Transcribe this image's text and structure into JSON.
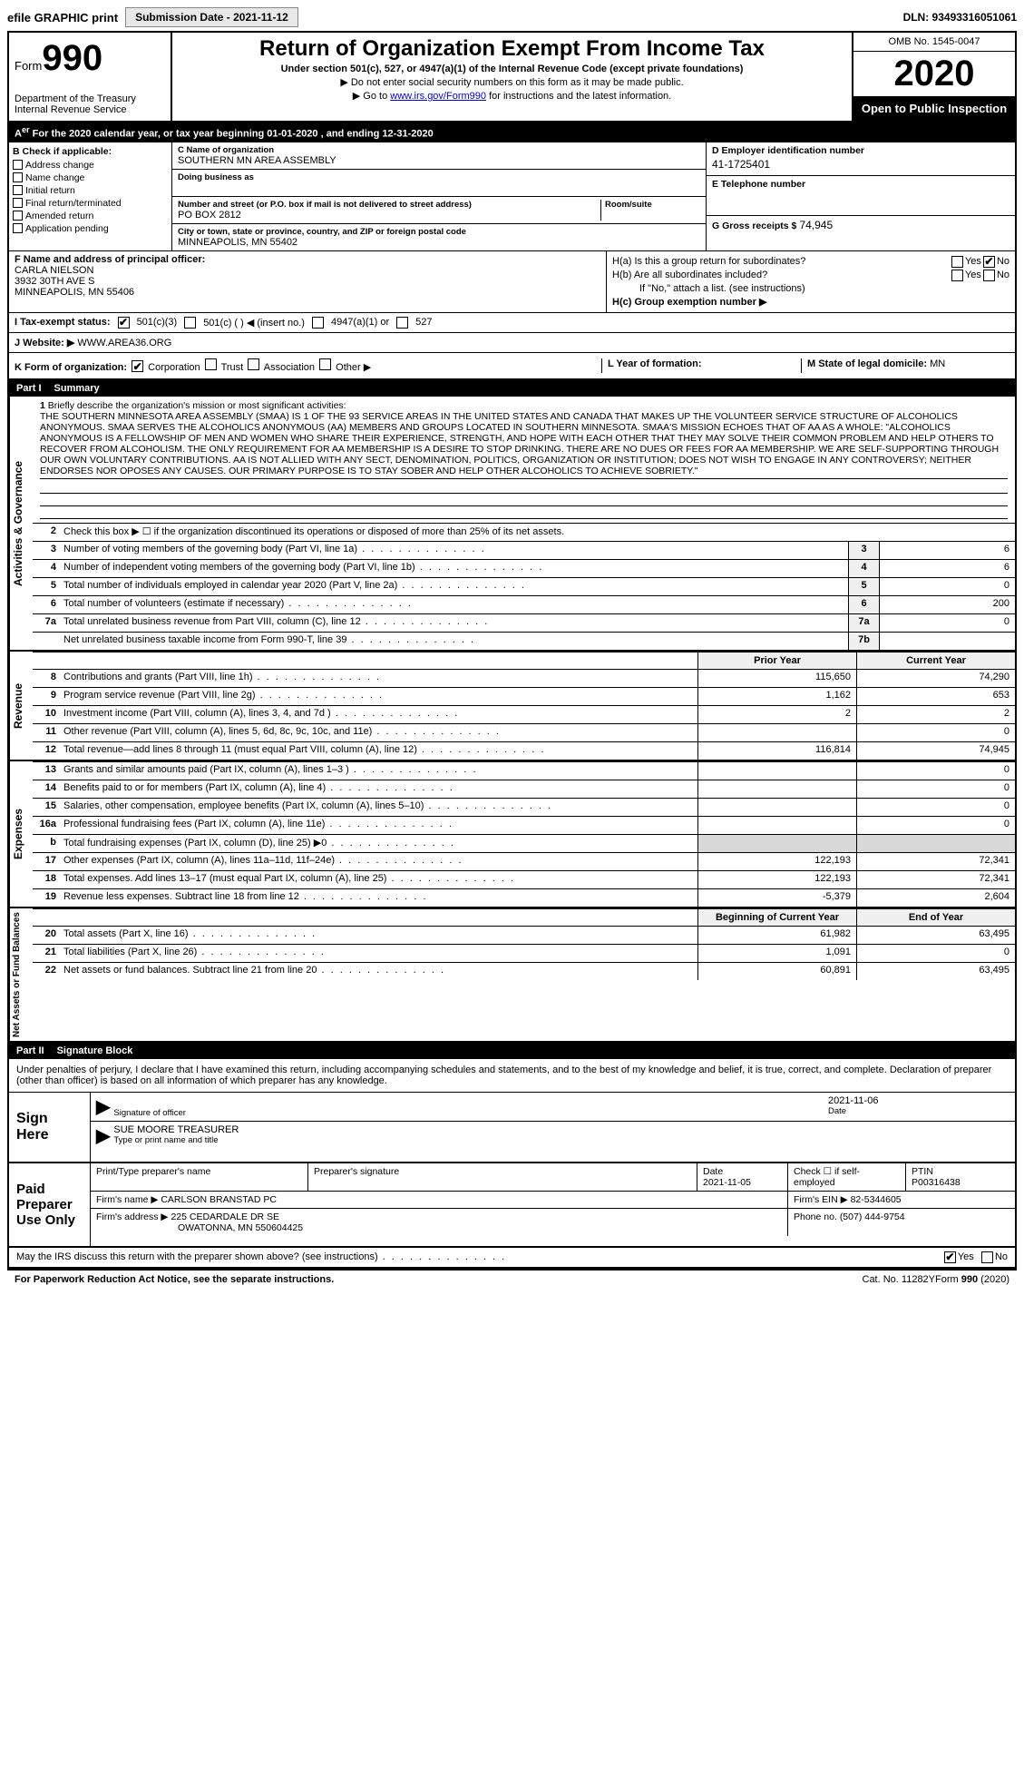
{
  "top": {
    "efile": "efile GRAPHIC print",
    "submission_label": "Submission Date - 2021-11-12",
    "dln": "DLN: 93493316051061"
  },
  "header": {
    "form_prefix": "Form",
    "form_num": "990",
    "dept": "Department of the Treasury\nInternal Revenue Service",
    "title": "Return of Organization Exempt From Income Tax",
    "subtitle": "Under section 501(c), 527, or 4947(a)(1) of the Internal Revenue Code (except private foundations)",
    "note1": "▶ Do not enter social security numbers on this form as it may be made public.",
    "note2": "▶ Go to www.irs.gov/Form990 for instructions and the latest information.",
    "link": "www.irs.gov/Form990",
    "omb": "OMB No. 1545-0047",
    "year": "2020",
    "open": "Open to Public Inspection"
  },
  "row_a": "For the 2020 calendar year, or tax year beginning 01-01-2020   , and ending 12-31-2020",
  "col_b": {
    "hdr": "B Check if applicable:",
    "items": [
      "Address change",
      "Name change",
      "Initial return",
      "Final return/terminated",
      "Amended return",
      "Application pending"
    ]
  },
  "col_c": {
    "name_label": "C Name of organization",
    "name": "SOUTHERN MN AREA ASSEMBLY",
    "dba_label": "Doing business as",
    "dba": "",
    "addr_label": "Number and street (or P.O. box if mail is not delivered to street address)",
    "addr": "PO BOX 2812",
    "room_label": "Room/suite",
    "city_label": "City or town, state or province, country, and ZIP or foreign postal code",
    "city": "MINNEAPOLIS, MN  55402"
  },
  "col_d": {
    "label": "D Employer identification number",
    "val": "41-1725401"
  },
  "col_e": {
    "label": "E Telephone number",
    "val": ""
  },
  "col_g": {
    "label": "G Gross receipts $",
    "val": "74,945"
  },
  "col_f": {
    "label": "F  Name and address of principal officer:",
    "name": "CARLA NIELSON",
    "addr1": "3932 30TH AVE S",
    "addr2": "MINNEAPOLIS, MN  55406"
  },
  "col_h": {
    "a_label": "H(a)  Is this a group return for subordinates?",
    "b_label": "H(b)  Are all subordinates included?",
    "note": "If \"No,\" attach a list. (see instructions)",
    "c_label": "H(c)  Group exemption number ▶",
    "yes": "Yes",
    "no": "No"
  },
  "row_i": {
    "label": "I   Tax-exempt status:",
    "o1": "501(c)(3)",
    "o2": "501(c) (  ) ◀ (insert no.)",
    "o3": "4947(a)(1) or",
    "o4": "527"
  },
  "row_j": {
    "label": "J   Website: ▶",
    "val": "WWW.AREA36.ORG"
  },
  "row_k": {
    "label": "K Form of organization:",
    "o1": "Corporation",
    "o2": "Trust",
    "o3": "Association",
    "o4": "Other ▶",
    "l_label": "L Year of formation:",
    "l_val": "",
    "m_label": "M State of legal domicile:",
    "m_val": "MN"
  },
  "part1": {
    "num": "Part I",
    "title": "Summary"
  },
  "mission": {
    "q1_num": "1",
    "q1": "Briefly describe the organization's mission or most significant activities:",
    "text": "THE SOUTHERN MINNESOTA AREA ASSEMBLY (SMAA) IS 1 OF THE 93 SERVICE AREAS IN THE UNITED STATES AND CANADA THAT MAKES UP THE VOLUNTEER SERVICE STRUCTURE OF ALCOHOLICS ANONYMOUS. SMAA SERVES THE ALCOHOLICS ANONYMOUS (AA) MEMBERS AND GROUPS LOCATED IN SOUTHERN MINNESOTA. SMAA'S MISSION ECHOES THAT OF AA AS A WHOLE: \"ALCOHOLICS ANONYMOUS IS A FELLOWSHIP OF MEN AND WOMEN WHO SHARE THEIR EXPERIENCE, STRENGTH, AND HOPE WITH EACH OTHER THAT THEY MAY SOLVE THEIR COMMON PROBLEM AND HELP OTHERS TO RECOVER FROM ALCOHOLISM. THE ONLY REQUIREMENT FOR AA MEMBERSHIP IS A DESIRE TO STOP DRINKING. THERE ARE NO DUES OR FEES FOR AA MEMBERSHIP. WE ARE SELF-SUPPORTING THROUGH OUR OWN VOLUNTARY CONTRIBUTIONS. AA IS NOT ALLIED WITH ANY SECT, DENOMINATION, POLITICS, ORGANIZATION OR INSTITUTION; DOES NOT WISH TO ENGAGE IN ANY CONTROVERSY; NEITHER ENDORSES NOR OPOSES ANY CAUSES. OUR PRIMARY PURPOSE IS TO STAY SOBER AND HELP OTHER ALCOHOLICS TO ACHIEVE SOBRIETY.\""
  },
  "gov_labels": {
    "vert": "Activities & Governance",
    "q2": "Check this box ▶ ☐ if the organization discontinued its operations or disposed of more than 25% of its net assets.",
    "q3": "Number of voting members of the governing body (Part VI, line 1a)",
    "q4": "Number of independent voting members of the governing body (Part VI, line 1b)",
    "q5": "Total number of individuals employed in calendar year 2020 (Part V, line 2a)",
    "q6": "Total number of volunteers (estimate if necessary)",
    "q7a": "Total unrelated business revenue from Part VIII, column (C), line 12",
    "q7b": "Net unrelated business taxable income from Form 990-T, line 39"
  },
  "gov_vals": {
    "3": "6",
    "4": "6",
    "5": "0",
    "6": "200",
    "7a": "0",
    "7b": ""
  },
  "col_hdrs": {
    "prior": "Prior Year",
    "curr": "Current Year",
    "begin": "Beginning of Current Year",
    "end": "End of Year"
  },
  "revenue": {
    "vert": "Revenue",
    "rows": [
      {
        "n": "8",
        "t": "Contributions and grants (Part VIII, line 1h)",
        "p": "115,650",
        "c": "74,290"
      },
      {
        "n": "9",
        "t": "Program service revenue (Part VIII, line 2g)",
        "p": "1,162",
        "c": "653"
      },
      {
        "n": "10",
        "t": "Investment income (Part VIII, column (A), lines 3, 4, and 7d )",
        "p": "2",
        "c": "2"
      },
      {
        "n": "11",
        "t": "Other revenue (Part VIII, column (A), lines 5, 6d, 8c, 9c, 10c, and 11e)",
        "p": "",
        "c": "0"
      },
      {
        "n": "12",
        "t": "Total revenue—add lines 8 through 11 (must equal Part VIII, column (A), line 12)",
        "p": "116,814",
        "c": "74,945"
      }
    ]
  },
  "expenses": {
    "vert": "Expenses",
    "rows": [
      {
        "n": "13",
        "t": "Grants and similar amounts paid (Part IX, column (A), lines 1–3 )",
        "p": "",
        "c": "0"
      },
      {
        "n": "14",
        "t": "Benefits paid to or for members (Part IX, column (A), line 4)",
        "p": "",
        "c": "0"
      },
      {
        "n": "15",
        "t": "Salaries, other compensation, employee benefits (Part IX, column (A), lines 5–10)",
        "p": "",
        "c": "0"
      },
      {
        "n": "16a",
        "t": "Professional fundraising fees (Part IX, column (A), line 11e)",
        "p": "",
        "c": "0"
      },
      {
        "n": "b",
        "t": "Total fundraising expenses (Part IX, column (D), line 25) ▶0",
        "p": "GREY",
        "c": "GREY"
      },
      {
        "n": "17",
        "t": "Other expenses (Part IX, column (A), lines 11a–11d, 11f–24e)",
        "p": "122,193",
        "c": "72,341"
      },
      {
        "n": "18",
        "t": "Total expenses. Add lines 13–17 (must equal Part IX, column (A), line 25)",
        "p": "122,193",
        "c": "72,341"
      },
      {
        "n": "19",
        "t": "Revenue less expenses. Subtract line 18 from line 12",
        "p": "-5,379",
        "c": "2,604"
      }
    ]
  },
  "netassets": {
    "vert": "Net Assets or Fund Balances",
    "rows": [
      {
        "n": "20",
        "t": "Total assets (Part X, line 16)",
        "p": "61,982",
        "c": "63,495"
      },
      {
        "n": "21",
        "t": "Total liabilities (Part X, line 26)",
        "p": "1,091",
        "c": "0"
      },
      {
        "n": "22",
        "t": "Net assets or fund balances. Subtract line 21 from line 20",
        "p": "60,891",
        "c": "63,495"
      }
    ]
  },
  "part2": {
    "num": "Part II",
    "title": "Signature Block"
  },
  "sig": {
    "intro": "Under penalties of perjury, I declare that I have examined this return, including accompanying schedules and statements, and to the best of my knowledge and belief, it is true, correct, and complete. Declaration of preparer (other than officer) is based on all information of which preparer has any knowledge.",
    "here": "Sign Here",
    "sig_caption": "Signature of officer",
    "date_caption": "Date",
    "date": "2021-11-06",
    "name": "SUE MOORE  TREASURER",
    "name_caption": "Type or print name and title"
  },
  "paid": {
    "label": "Paid Preparer Use Only",
    "h1": "Print/Type preparer's name",
    "h2": "Preparer's signature",
    "h3": "Date",
    "h4": "Check ☐ if self-employed",
    "h5": "PTIN",
    "date": "2021-11-05",
    "ptin": "P00316438",
    "firm_name_lbl": "Firm's name   ▶",
    "firm_name": "CARLSON BRANSTAD PC",
    "firm_ein_lbl": "Firm's EIN ▶",
    "firm_ein": "82-5344605",
    "firm_addr_lbl": "Firm's address ▶",
    "firm_addr1": "225 CEDARDALE DR SE",
    "firm_addr2": "OWATONNA, MN  550604425",
    "phone_lbl": "Phone no.",
    "phone": "(507) 444-9754"
  },
  "discuss": {
    "q": "May the IRS discuss this return with the preparer shown above? (see instructions)",
    "yes": "Yes",
    "no": "No"
  },
  "footer": {
    "pra": "For Paperwork Reduction Act Notice, see the separate instructions.",
    "cat": "Cat. No. 11282Y",
    "form": "Form 990 (2020)"
  },
  "colors": {
    "black": "#000000",
    "white": "#ffffff",
    "link": "#0000cc",
    "grey_fill": "#d8d8d8",
    "box_grey": "#f0f0f0",
    "btn_bg": "#e8e8e8"
  }
}
